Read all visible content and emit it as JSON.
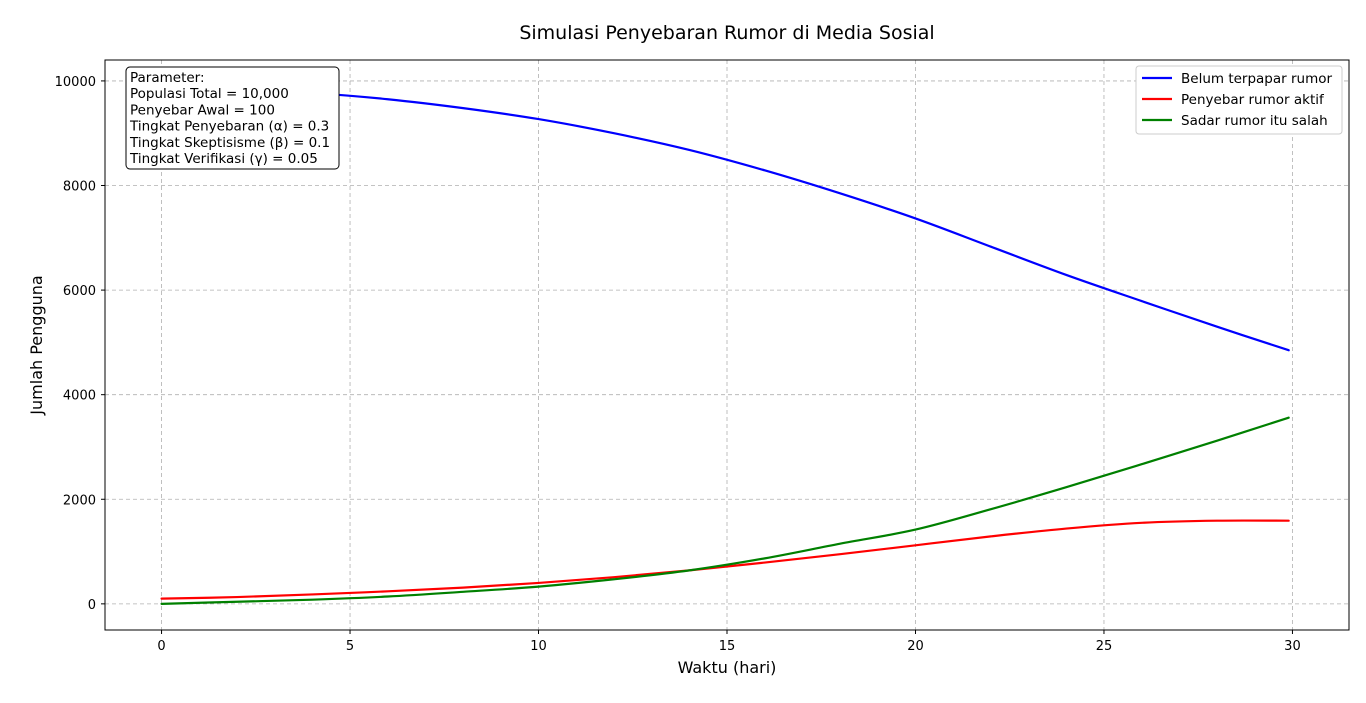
{
  "chart_data": {
    "type": "line",
    "title": "Simulasi Penyebaran Rumor di Media Sosial",
    "xlabel": "Waktu (hari)",
    "ylabel": "Jumlah Pengguna",
    "xlim": [
      -1.5,
      31.5
    ],
    "ylim": [
      -500,
      10400
    ],
    "xticks": [
      0,
      5,
      10,
      15,
      20,
      25,
      30
    ],
    "xtick_labels": [
      "0",
      "5",
      "10",
      "15",
      "20",
      "25",
      "30"
    ],
    "yticks": [
      0,
      2000,
      4000,
      6000,
      8000,
      10000
    ],
    "ytick_labels": [
      "0",
      "2000",
      "4000",
      "6000",
      "8000",
      "10000"
    ],
    "grid": true,
    "legend_position": "top-right",
    "parameter_box": {
      "lines": [
        "Parameter:",
        "Populasi Total = 10,000",
        "Penyebar Awal = 100",
        "Tingkat Penyebaran (α) = 0.3",
        "Tingkat Skeptisisme (β) = 0.1",
        "Tingkat Verifikasi (γ) = 0.05"
      ]
    },
    "x": [
      0,
      2,
      4,
      6,
      8,
      10,
      12,
      14,
      16,
      18,
      20,
      22,
      24,
      26,
      28,
      29.9
    ],
    "series": [
      {
        "name": "Belum terpapar rumor",
        "color": "#0000ff",
        "values": [
          9900,
          9850,
          9770,
          9650,
          9480,
          9270,
          9000,
          8680,
          8290,
          7850,
          7370,
          6830,
          6290,
          5790,
          5300,
          4850
        ]
      },
      {
        "name": "Penyebar rumor aktif",
        "color": "#ff0000",
        "values": [
          100,
          130,
          180,
          240,
          310,
          400,
          510,
          640,
          790,
          950,
          1120,
          1290,
          1440,
          1550,
          1590,
          1590
        ]
      },
      {
        "name": "Sadar rumor itu salah",
        "color": "#008000",
        "values": [
          0,
          40,
          80,
          140,
          230,
          330,
          470,
          640,
          870,
          1150,
          1420,
          1810,
          2230,
          2670,
          3120,
          3560
        ]
      }
    ]
  }
}
